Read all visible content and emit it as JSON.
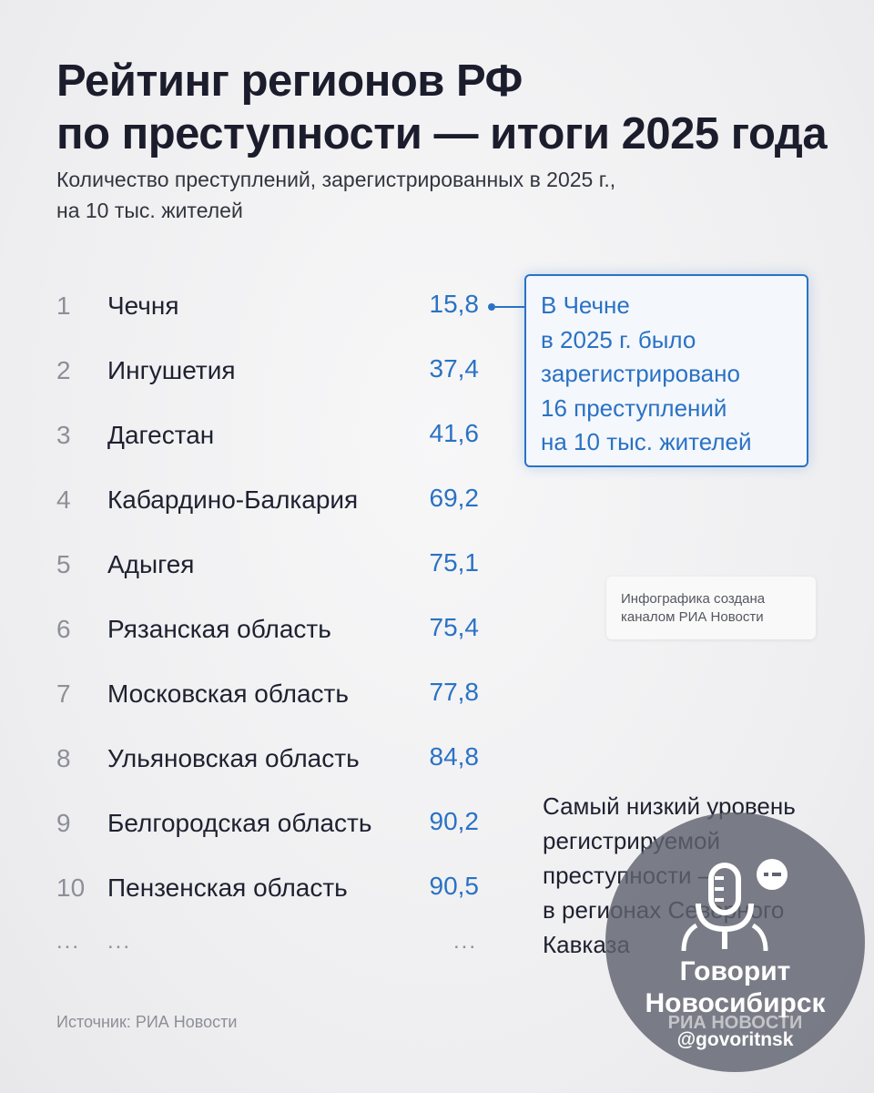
{
  "header": {
    "title_line1": "Рейтинг регионов РФ",
    "title_line2": "по преступности — итоги 2025 года",
    "subtitle_line1": "Количество преступлений, зарегистрированных в 2025 г.,",
    "subtitle_line2": "на 10 тыс. жителей"
  },
  "ranking": [
    {
      "rank": "1",
      "region": "Чечня",
      "value": "15,8"
    },
    {
      "rank": "2",
      "region": "Ингушетия",
      "value": "37,4"
    },
    {
      "rank": "3",
      "region": "Дагестан",
      "value": "41,6"
    },
    {
      "rank": "4",
      "region": "Кабардино-Балкария",
      "value": "69,2"
    },
    {
      "rank": "5",
      "region": "Адыгея",
      "value": "75,1"
    },
    {
      "rank": "6",
      "region": "Рязанская область",
      "value": "75,4"
    },
    {
      "rank": "7",
      "region": "Московская область",
      "value": "77,8"
    },
    {
      "rank": "8",
      "region": "Ульяновская область",
      "value": "84,8"
    },
    {
      "rank": "9",
      "region": "Белгородская область",
      "value": "90,2"
    },
    {
      "rank": "10",
      "region": "Пензенская область",
      "value": "90,5"
    }
  ],
  "ellipsis": "...",
  "callout": {
    "lines": [
      "В Чечне",
      "в 2025 г. было",
      "зарегистрировано",
      "16 преступлений",
      "на 10 тыс. жителей"
    ]
  },
  "credit": {
    "line1": "Инфографика создана",
    "line2": "каналом РИА Новости"
  },
  "note": {
    "lines": [
      "Самый низкий уровень",
      "регистрируемой",
      "преступности —",
      "в регионах Северного",
      "Кавказа"
    ]
  },
  "source": "Источник: РИА Новости",
  "watermark": {
    "title_line1": "Говорит",
    "title_line2": "Новосибирск",
    "ria": "РИА НОВОСТИ",
    "handle": "@govoritnsk"
  },
  "colors": {
    "accent": "#2a72c4",
    "text": "#1f2130",
    "muted": "#8d8f98"
  }
}
